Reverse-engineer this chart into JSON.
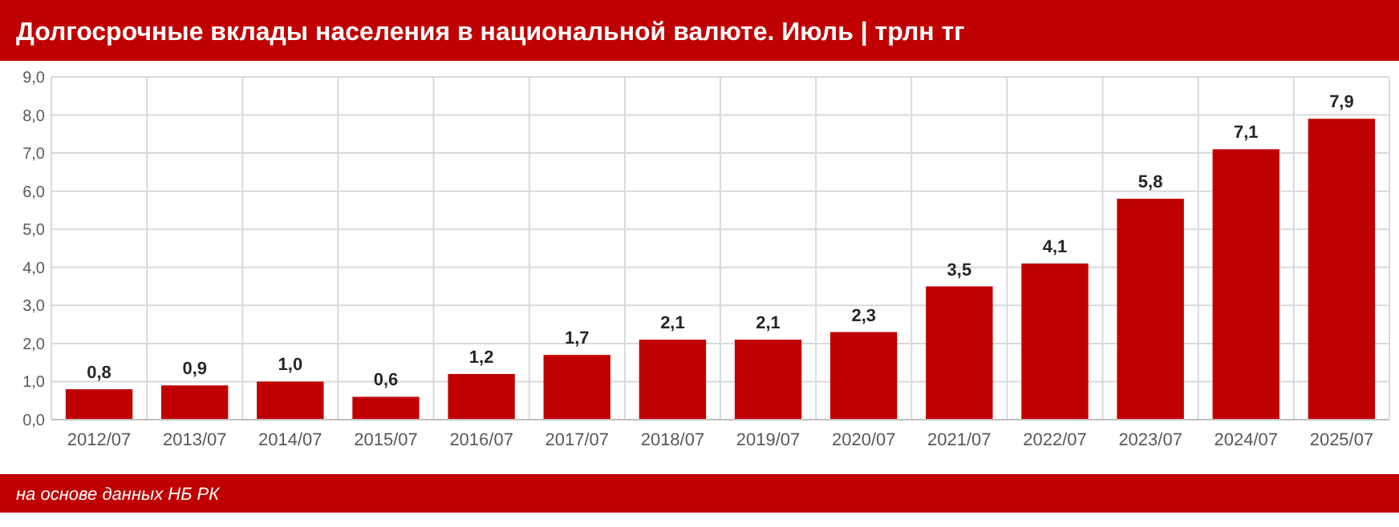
{
  "chart_data": {
    "type": "bar",
    "title": "Долгосрочные вклады населения в национальной валюте. Июль | трлн тг",
    "categories": [
      "2012/07",
      "2013/07",
      "2014/07",
      "2015/07",
      "2016/07",
      "2017/07",
      "2018/07",
      "2019/07",
      "2020/07",
      "2021/07",
      "2022/07",
      "2023/07",
      "2024/07",
      "2025/07"
    ],
    "values": [
      0.8,
      0.9,
      1.0,
      0.6,
      1.2,
      1.7,
      2.1,
      2.1,
      2.3,
      3.5,
      4.1,
      5.8,
      7.1,
      7.9
    ],
    "value_labels": [
      "0,8",
      "0,9",
      "1,0",
      "0,6",
      "1,2",
      "1,7",
      "2,1",
      "2,1",
      "2,3",
      "3,5",
      "4,1",
      "5,8",
      "7,1",
      "7,9"
    ],
    "color": "#c00000",
    "ylim": [
      0,
      9
    ],
    "yticks": [
      {
        "value": 0,
        "label": "0,0"
      },
      {
        "value": 1,
        "label": "1,0"
      },
      {
        "value": 2,
        "label": "2,0"
      },
      {
        "value": 3,
        "label": "3,0"
      },
      {
        "value": 4,
        "label": "4,0"
      },
      {
        "value": 5,
        "label": "5,0"
      },
      {
        "value": 6,
        "label": "6,0"
      },
      {
        "value": 7,
        "label": "7,0"
      },
      {
        "value": 8,
        "label": "8,0"
      },
      {
        "value": 9,
        "label": "9,0"
      }
    ],
    "grid": true,
    "annotations": [
      "на основе данных НБ РК"
    ]
  }
}
